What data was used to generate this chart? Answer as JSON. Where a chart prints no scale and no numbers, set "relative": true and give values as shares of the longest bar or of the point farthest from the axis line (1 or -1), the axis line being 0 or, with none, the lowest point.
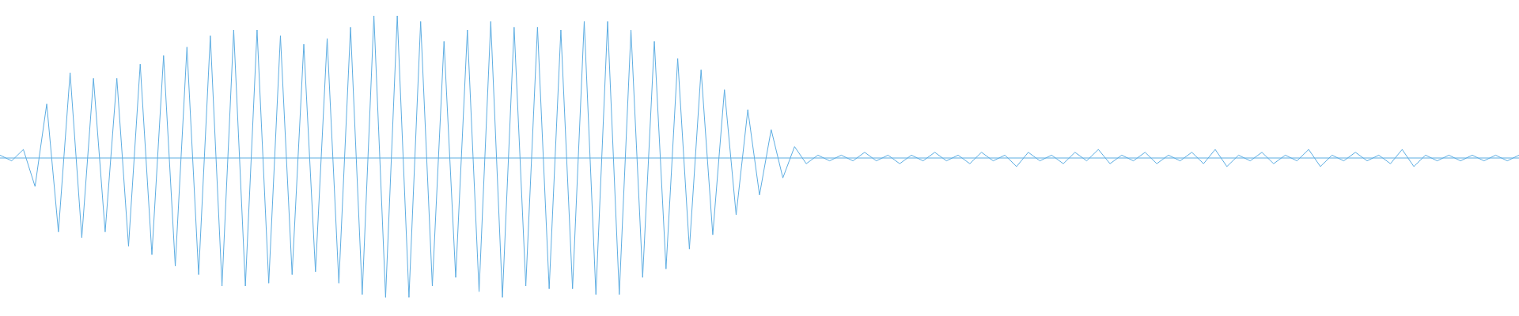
{
  "chart_data": {
    "type": "line",
    "relative": true,
    "ref_lines": [
      {
        "axis": "y",
        "value": 0,
        "color": "#5dade2"
      }
    ],
    "legend": false,
    "marker": "none",
    "line_style": "solid",
    "categories": [
      null,
      null,
      null,
      null,
      null,
      null,
      null,
      null,
      null,
      null,
      null,
      null,
      null,
      null,
      null,
      null,
      null,
      null,
      null,
      null,
      null,
      null,
      null,
      null,
      null,
      null,
      null,
      null,
      null,
      null,
      null,
      null,
      null,
      null,
      null,
      null,
      null,
      null,
      null,
      null,
      null,
      null,
      null,
      null,
      null,
      null,
      null,
      null,
      null,
      null,
      null,
      null,
      null,
      null,
      null,
      null,
      null,
      null,
      null,
      null,
      null,
      null,
      null,
      null,
      null,
      null,
      null,
      null,
      null,
      null,
      null,
      null,
      null,
      null,
      null,
      null,
      null,
      null,
      null,
      null,
      null,
      null,
      null,
      null,
      null,
      null,
      null,
      null,
      null,
      null,
      null,
      null,
      null,
      null,
      null,
      null,
      null,
      null,
      null,
      null,
      null,
      null,
      null,
      null,
      null,
      null,
      null,
      null,
      null,
      null,
      null,
      null,
      null,
      null,
      null,
      null,
      null,
      null,
      null,
      null,
      null,
      null,
      null,
      null,
      null,
      null,
      null,
      null,
      null,
      null,
      null
    ],
    "series": [
      {
        "color": "#5dade2",
        "values": [
          0.02,
          -0.02,
          0.06,
          -0.2,
          0.38,
          -0.52,
          0.6,
          -0.56,
          0.56,
          -0.52,
          0.56,
          -0.62,
          0.66,
          -0.68,
          0.72,
          -0.76,
          0.78,
          -0.82,
          0.86,
          -0.9,
          0.9,
          -0.9,
          0.9,
          -0.88,
          0.86,
          -0.82,
          0.8,
          -0.8,
          0.84,
          -0.88,
          0.92,
          -0.96,
          1,
          -0.98,
          1,
          -0.98,
          0.96,
          -0.9,
          0.82,
          -0.84,
          0.9,
          -0.94,
          0.96,
          -0.98,
          0.92,
          -0.9,
          0.92,
          -0.92,
          0.9,
          -0.92,
          0.96,
          -0.96,
          0.96,
          -0.96,
          0.9,
          -0.84,
          0.82,
          -0.78,
          0.7,
          -0.64,
          0.62,
          -0.54,
          0.48,
          -0.4,
          0.34,
          -0.26,
          0.2,
          -0.14,
          0.08,
          -0.04,
          0.02,
          -0.02,
          0.02,
          -0.02,
          0.04,
          -0.02,
          0.02,
          -0.04,
          0.02,
          -0.02,
          0.04,
          -0.02,
          0.02,
          -0.04,
          0.04,
          -0.02,
          0.02,
          -0.06,
          0.04,
          -0.02,
          0.02,
          -0.04,
          0.04,
          -0.02,
          0.06,
          -0.04,
          0.02,
          -0.02,
          0.04,
          -0.04,
          0.02,
          -0.02,
          0.04,
          -0.04,
          0.06,
          -0.06,
          0.02,
          -0.02,
          0.04,
          -0.04,
          0.02,
          -0.02,
          0.06,
          -0.06,
          0.02,
          -0.02,
          0.04,
          -0.02,
          0.02,
          -0.04,
          0.06,
          -0.06,
          0.02,
          -0.02,
          0.02,
          -0.02,
          0.02,
          -0.02,
          0.02,
          -0.02,
          0.02
        ]
      }
    ]
  }
}
